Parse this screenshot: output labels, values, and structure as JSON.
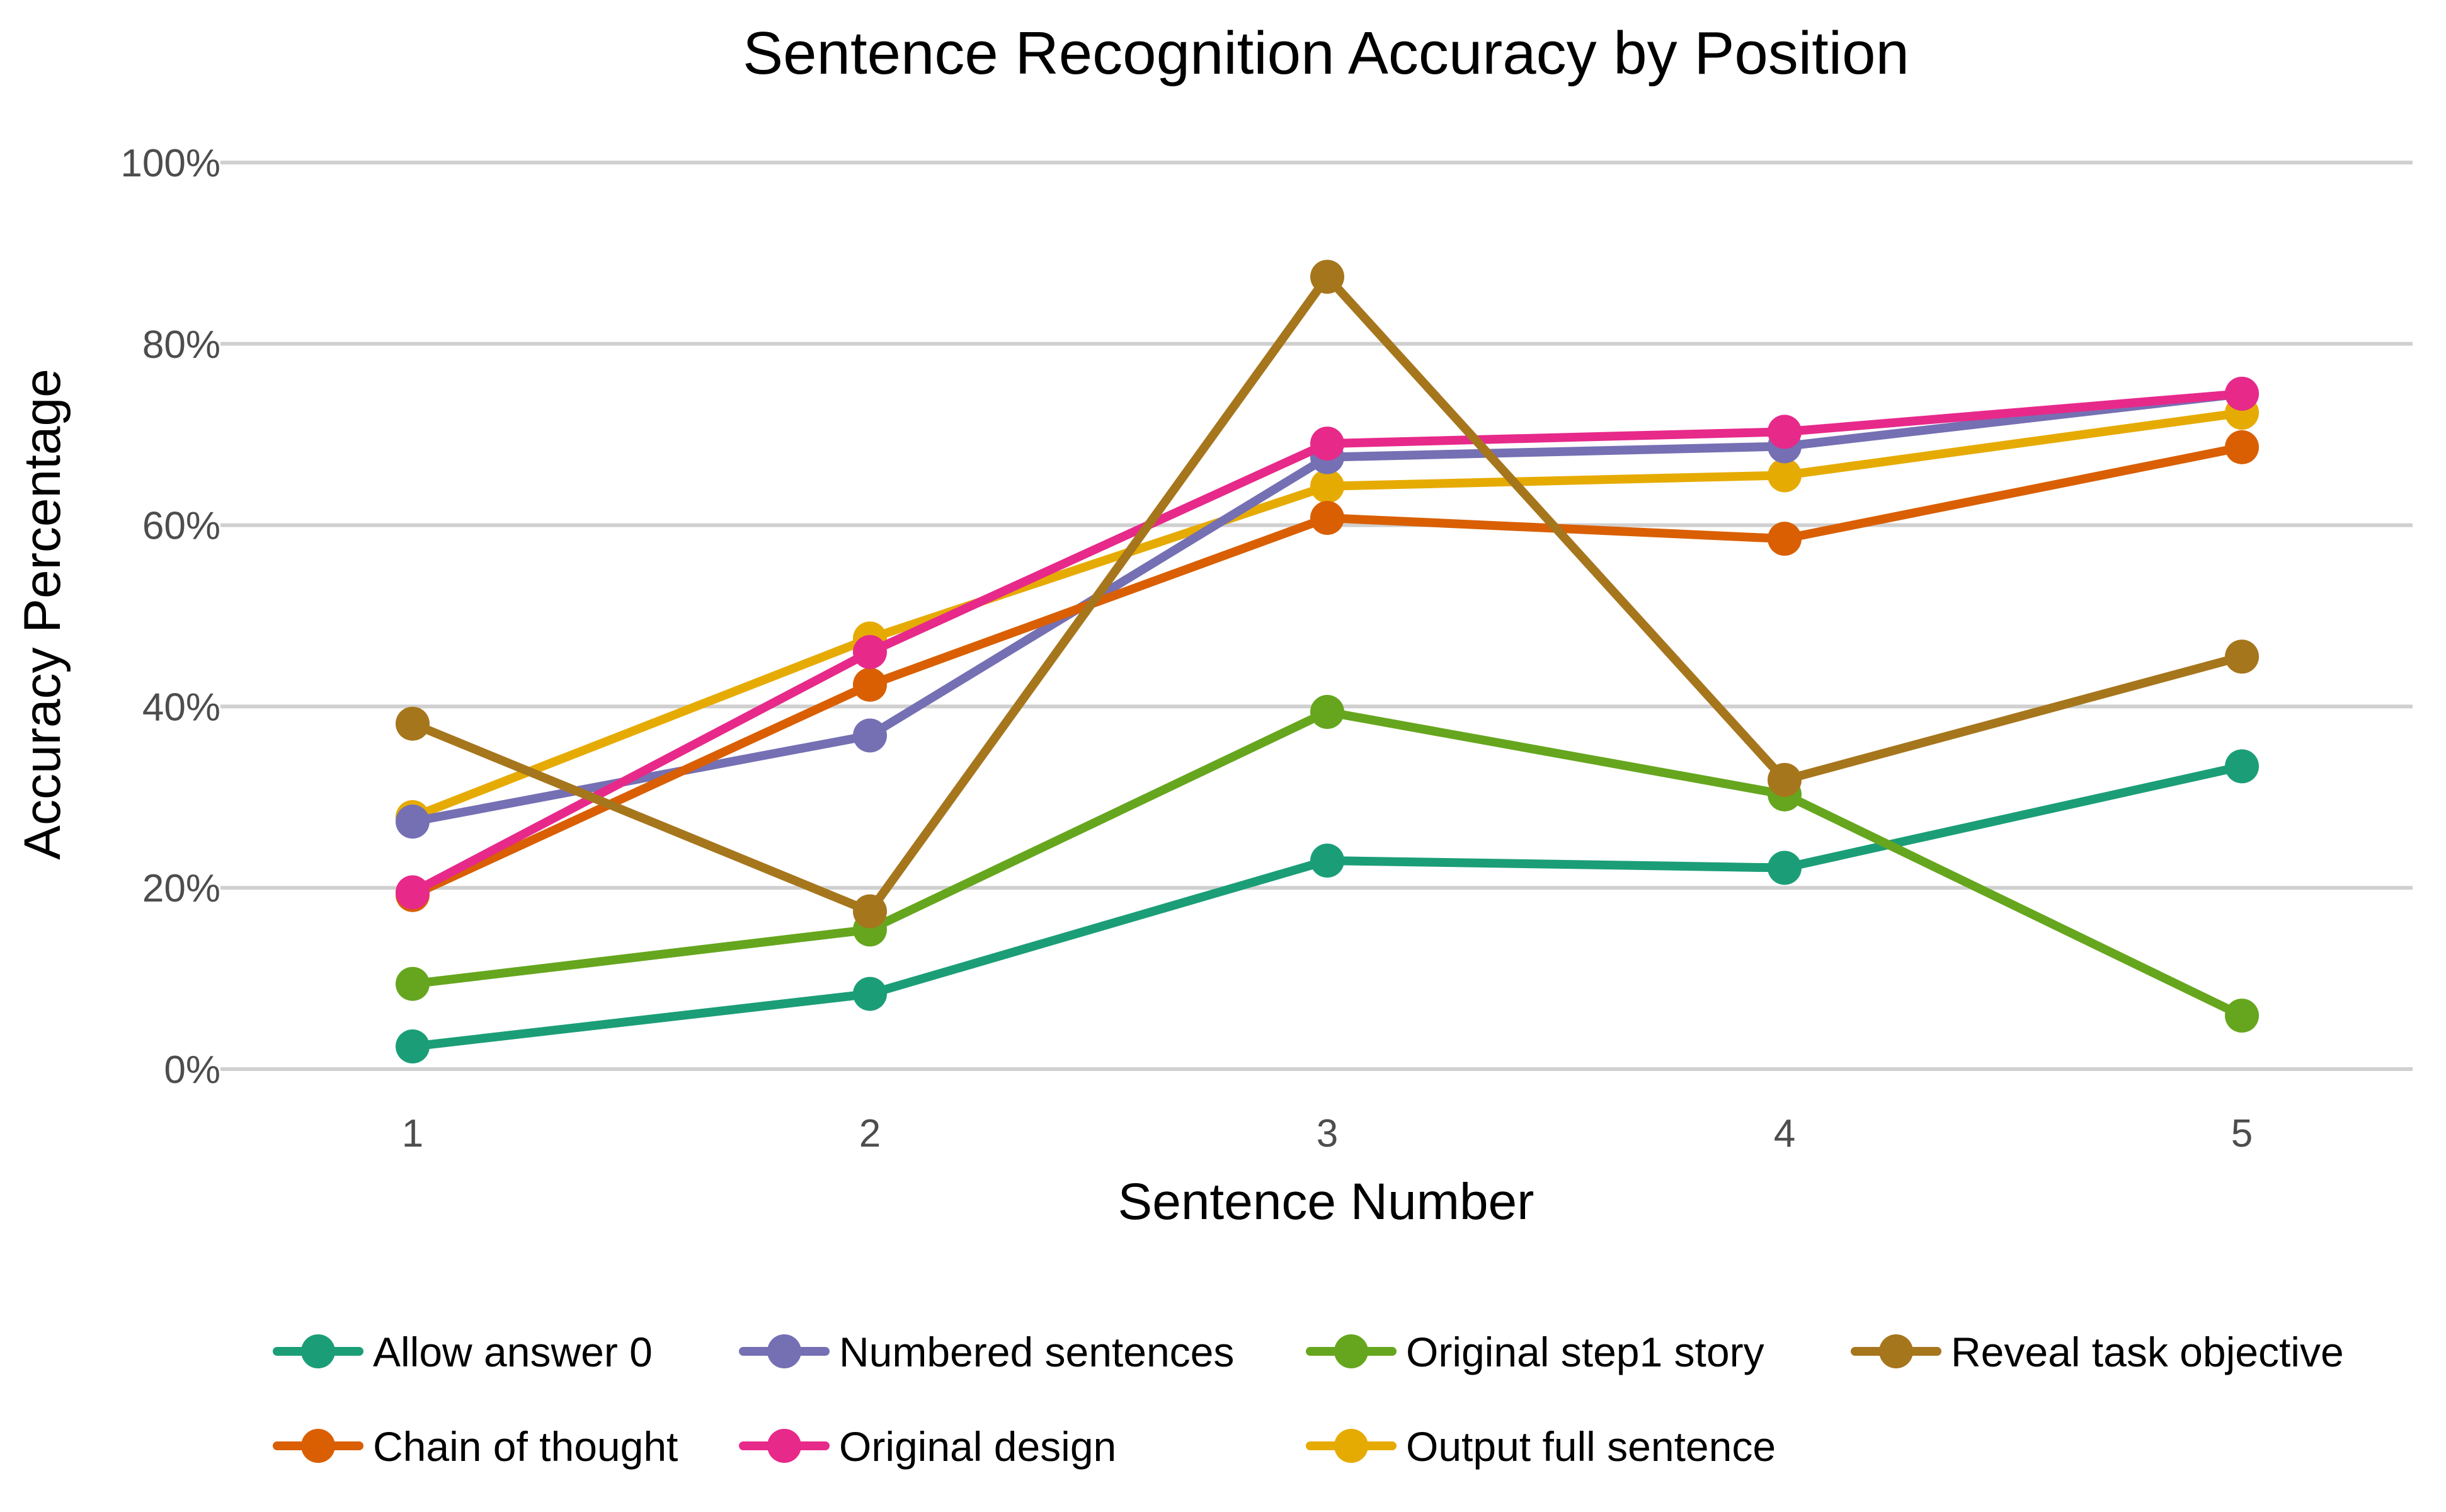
{
  "chart_data": {
    "type": "line",
    "title": "Sentence Recognition Accuracy by Position",
    "xlabel": "Sentence Number",
    "ylabel": "Accuracy Percentage",
    "x": [
      1,
      2,
      3,
      4,
      5
    ],
    "x_tick_labels": [
      "1",
      "2",
      "3",
      "4",
      "5"
    ],
    "ylim": [
      0,
      100
    ],
    "y_ticks": [
      0,
      20,
      40,
      60,
      80,
      100
    ],
    "y_tick_labels": [
      "0%",
      "20%",
      "40%",
      "60%",
      "80%",
      "100%"
    ],
    "grid": "horizontal",
    "legend_position": "bottom",
    "series": [
      {
        "name": "Allow answer 0",
        "color": "#1b9e77",
        "values": [
          2.5,
          8.3,
          23.0,
          22.2,
          33.4
        ]
      },
      {
        "name": "Numbered sentences",
        "color": "#7570b3",
        "values": [
          27.3,
          36.8,
          67.5,
          68.7,
          74.5
        ]
      },
      {
        "name": "Original step1 story",
        "color": "#66a61e",
        "values": [
          9.4,
          15.4,
          39.4,
          30.3,
          5.9
        ]
      },
      {
        "name": "Reveal task objective",
        "color": "#a6761d",
        "values": [
          38.1,
          17.4,
          87.4,
          31.9,
          45.5
        ]
      },
      {
        "name": "Chain of thought",
        "color": "#d95f02",
        "values": [
          19.2,
          42.4,
          60.8,
          58.5,
          68.6
        ]
      },
      {
        "name": "Original design",
        "color": "#e7298a",
        "values": [
          19.5,
          46.0,
          69.0,
          70.3,
          74.5
        ]
      },
      {
        "name": "Output full sentence",
        "color": "#e6ab02",
        "values": [
          27.8,
          47.5,
          64.3,
          65.5,
          72.4
        ]
      }
    ]
  }
}
